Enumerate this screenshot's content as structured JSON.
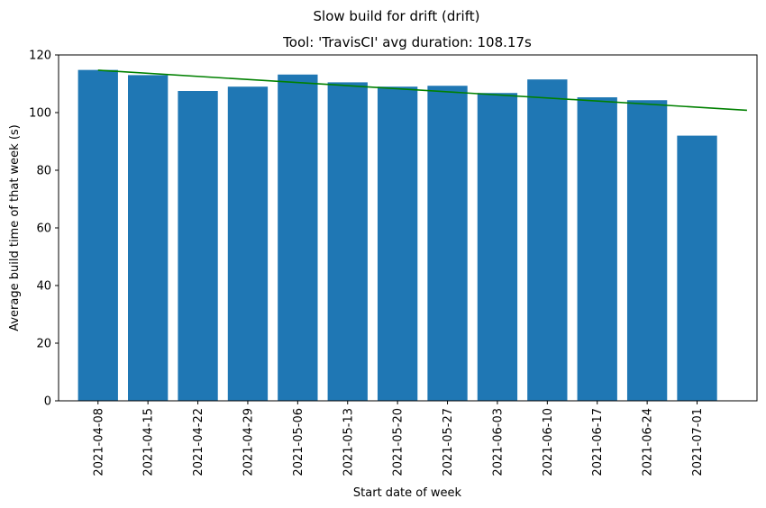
{
  "chart_data": {
    "type": "bar",
    "suptitle": "Slow build for drift (drift)",
    "title": "Tool: 'TravisCI' avg duration: 108.17s",
    "xlabel": "Start date of week",
    "ylabel": "Average build time of that week (s)",
    "ylim": [
      0,
      120
    ],
    "yticks": [
      0,
      20,
      40,
      60,
      80,
      100,
      120
    ],
    "categories": [
      "2021-04-08",
      "2021-04-15",
      "2021-04-22",
      "2021-04-29",
      "2021-05-06",
      "2021-05-13",
      "2021-05-20",
      "2021-05-27",
      "2021-06-03",
      "2021-06-10",
      "2021-06-17",
      "2021-06-24",
      "2021-07-01"
    ],
    "values": [
      114.8,
      113.0,
      107.5,
      109.0,
      113.2,
      110.5,
      109.0,
      109.3,
      106.8,
      111.5,
      105.3,
      104.3,
      92.0
    ],
    "bar_color": "#1f77b4",
    "trendline": {
      "color": "#008000",
      "start_value": 114.7,
      "end_value": 100.8
    },
    "grid": false,
    "legend": "none"
  }
}
